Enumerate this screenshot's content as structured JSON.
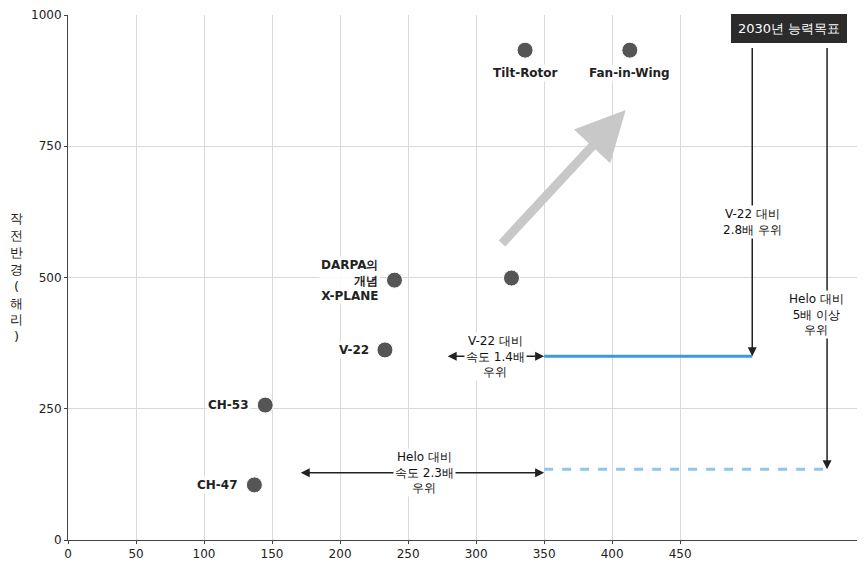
{
  "chart_data": {
    "type": "scatter",
    "y_label": "작전반경(해리)",
    "xlim": [
      0,
      580
    ],
    "xticks": [
      0,
      50,
      100,
      150,
      200,
      250,
      300,
      350,
      400,
      450
    ],
    "ylim": [
      0,
      1000
    ],
    "yticks": [
      0,
      250,
      500,
      750,
      1000
    ],
    "grid": true,
    "series": [
      {
        "type": "scatter",
        "marker": "circle",
        "color": "#555555",
        "x": [
          137,
          145,
          233,
          240,
          326,
          336,
          413
        ],
        "values": [
          105,
          257,
          362,
          495,
          499,
          933,
          933
        ],
        "labels": [
          "CH-47",
          "CH-53",
          "V-22",
          "DARPA의\n개념\nX-PLANE",
          null,
          "Tilt-Rotor",
          "Fan-in-Wing"
        ]
      },
      {
        "type": "line",
        "line_style": "solid",
        "color": "#3b9ad9",
        "x": [
          350,
          503
        ],
        "values": [
          350,
          350
        ]
      },
      {
        "type": "line",
        "line_style": "dashed",
        "color": "#8ec5ea",
        "x": [
          350,
          558
        ],
        "values": [
          135,
          135
        ]
      }
    ],
    "trend_arrow": {
      "x": [
        318,
        410
      ],
      "y": [
        562,
        819
      ],
      "color": "#c8c8c8"
    },
    "goal": {
      "text": "2030년 능력목표",
      "x": 530,
      "y": 975,
      "color": "#2b2b2b"
    },
    "callouts": [
      {
        "text": "V-22 대비\n2.8배 우위",
        "x": 503,
        "y": [
          940,
          350
        ],
        "text_x": 503,
        "text_y": 605
      },
      {
        "text": "Helo 대비\n5배 이상\n우위",
        "x": 558,
        "y": [
          940,
          135
        ],
        "text_x": 550,
        "text_y": 430
      }
    ],
    "spans": [
      {
        "text": "V-22 대비\n속도 1.4배\n우위",
        "x": [
          278,
          350
        ],
        "y": 350,
        "text_x": 314
      },
      {
        "text": "Helo 대비\n속도 2.3배\n우위",
        "x": [
          170,
          350
        ],
        "y": 128,
        "text_x": 262
      }
    ]
  }
}
